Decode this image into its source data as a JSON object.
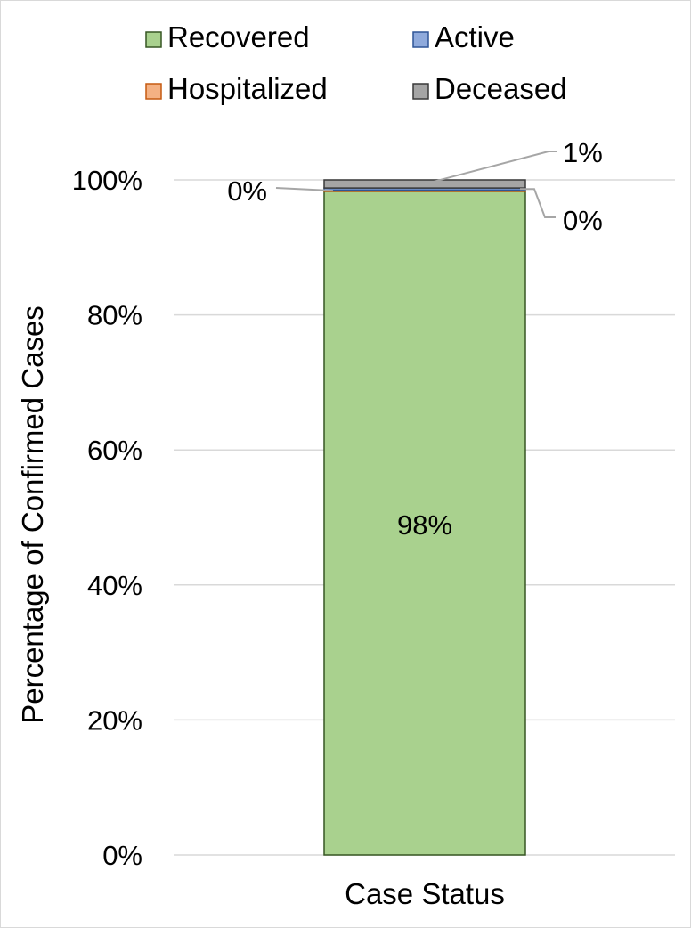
{
  "chart_data": {
    "type": "bar",
    "stacked": true,
    "categories": [
      "Case Status"
    ],
    "series": [
      {
        "name": "Recovered",
        "values": [
          98.3
        ],
        "color": "#a9d18e",
        "stroke": "#375623",
        "label": "98%"
      },
      {
        "name": "Hospitalized",
        "values": [
          0.2
        ],
        "color": "#f4b183",
        "stroke": "#c55a11",
        "label": "0%"
      },
      {
        "name": "Active",
        "values": [
          0.3
        ],
        "color": "#8faadc",
        "stroke": "#2f5597",
        "label": "0%"
      },
      {
        "name": "Deceased",
        "values": [
          1.2
        ],
        "color": "#a5a5a5",
        "stroke": "#3a3a3a",
        "label": "1%"
      }
    ],
    "legend_order": [
      "Recovered",
      "Active",
      "Hospitalized",
      "Deceased"
    ],
    "legend_position": "top",
    "title": "",
    "xlabel": "Case Status",
    "ylabel": "Percentage of Confirmed Cases",
    "ylim": [
      0,
      100
    ],
    "yticks": [
      0,
      20,
      40,
      60,
      80,
      100
    ],
    "ytick_labels": [
      "0%",
      "20%",
      "40%",
      "60%",
      "80%",
      "100%"
    ],
    "grid": true,
    "gridline_color": "#d9d9d9"
  }
}
